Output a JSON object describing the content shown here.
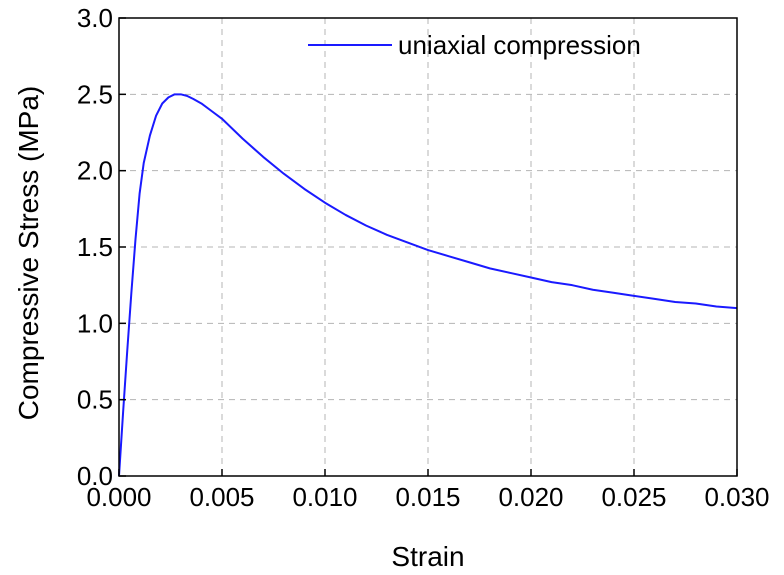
{
  "chart_data": {
    "type": "line",
    "title": "",
    "xlabel": "Strain",
    "ylabel": "Compressive Stress (MPa)",
    "xlim": [
      0.0,
      0.03
    ],
    "ylim": [
      0.0,
      3.0
    ],
    "xticks": [
      "0.000",
      "0.005",
      "0.010",
      "0.015",
      "0.020",
      "0.025",
      "0.030"
    ],
    "yticks": [
      "0.0",
      "0.5",
      "1.0",
      "1.5",
      "2.0",
      "2.5",
      "3.0"
    ],
    "grid": true,
    "legend_position": "top-right",
    "series": [
      {
        "name": "uniaxial compression",
        "color": "#1a1aff",
        "x": [
          0.0,
          0.0002,
          0.0004,
          0.0006,
          0.0008,
          0.001,
          0.0012,
          0.0015,
          0.0018,
          0.0021,
          0.0024,
          0.0027,
          0.003,
          0.0033,
          0.0036,
          0.004,
          0.0045,
          0.005,
          0.006,
          0.007,
          0.008,
          0.009,
          0.01,
          0.011,
          0.012,
          0.013,
          0.014,
          0.015,
          0.016,
          0.017,
          0.018,
          0.019,
          0.02,
          0.021,
          0.022,
          0.023,
          0.024,
          0.025,
          0.026,
          0.027,
          0.028,
          0.029,
          0.03
        ],
        "y": [
          0.0,
          0.42,
          0.82,
          1.2,
          1.55,
          1.85,
          2.05,
          2.23,
          2.36,
          2.44,
          2.48,
          2.5,
          2.5,
          2.49,
          2.47,
          2.44,
          2.39,
          2.34,
          2.21,
          2.09,
          1.98,
          1.88,
          1.79,
          1.71,
          1.64,
          1.58,
          1.53,
          1.48,
          1.44,
          1.4,
          1.36,
          1.33,
          1.3,
          1.27,
          1.25,
          1.22,
          1.2,
          1.18,
          1.16,
          1.14,
          1.13,
          1.11,
          1.1
        ]
      }
    ]
  }
}
